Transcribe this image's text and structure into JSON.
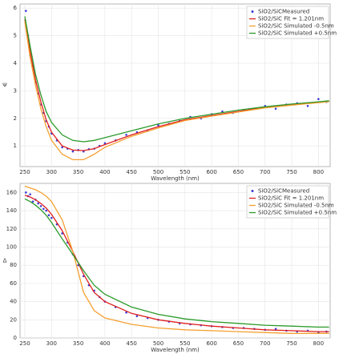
{
  "chart_data": [
    {
      "type": "line",
      "xlabel": "Wavelength (nm)",
      "ylabel": "Ψ",
      "xlim": [
        241,
        822
      ],
      "xticks": [
        250,
        300,
        350,
        400,
        450,
        500,
        550,
        600,
        650,
        700,
        750,
        800
      ],
      "ylim": [
        0.25,
        6.15
      ],
      "yticks": [
        1,
        2,
        3,
        4,
        5,
        6
      ],
      "grid": true,
      "legend": "upper-right",
      "series": [
        {
          "name": "SiO2/SiCMeasured",
          "color": "#3b3bd6",
          "style": "scatter",
          "x": [
            252,
            256,
            260,
            265,
            270,
            275,
            280,
            285,
            290,
            295,
            300,
            310,
            320,
            330,
            340,
            350,
            360,
            370,
            380,
            390,
            400,
            420,
            440,
            460,
            480,
            500,
            520,
            540,
            560,
            580,
            600,
            620,
            640,
            660,
            680,
            700,
            720,
            740,
            760,
            780,
            800,
            815
          ],
          "values": [
            5.9,
            5.0,
            4.3,
            3.9,
            3.3,
            2.9,
            2.5,
            2.2,
            1.9,
            1.7,
            1.45,
            1.2,
            0.95,
            0.9,
            0.8,
            0.85,
            0.8,
            0.88,
            0.9,
            1.0,
            1.1,
            1.2,
            1.4,
            1.5,
            1.55,
            1.75,
            1.8,
            1.9,
            2.05,
            2.0,
            2.15,
            2.25,
            2.2,
            2.3,
            2.35,
            2.45,
            2.35,
            2.5,
            2.55,
            2.45,
            2.7,
            2.6
          ]
        },
        {
          "name": "SiO2/SiC Fit = 1.201nm",
          "color": "#e02020",
          "style": "line",
          "x": [
            250,
            260,
            270,
            280,
            290,
            300,
            320,
            340,
            360,
            380,
            400,
            450,
            500,
            550,
            600,
            650,
            700,
            750,
            800,
            820
          ],
          "values": [
            5.6,
            4.4,
            3.4,
            2.6,
            1.95,
            1.5,
            1.0,
            0.85,
            0.83,
            0.9,
            1.05,
            1.4,
            1.7,
            1.95,
            2.1,
            2.25,
            2.4,
            2.5,
            2.58,
            2.62
          ]
        },
        {
          "name": "SiO2/SiC Simulated -0.5nm",
          "color": "#f5a030",
          "style": "line",
          "x": [
            250,
            260,
            270,
            280,
            290,
            300,
            320,
            340,
            360,
            380,
            400,
            450,
            500,
            550,
            600,
            650,
            700,
            750,
            800,
            820
          ],
          "values": [
            5.5,
            4.2,
            3.2,
            2.35,
            1.7,
            1.2,
            0.7,
            0.5,
            0.5,
            0.7,
            0.95,
            1.35,
            1.65,
            1.92,
            2.08,
            2.23,
            2.38,
            2.48,
            2.57,
            2.61
          ]
        },
        {
          "name": "SiO2/SiC Simulated +0.5nm",
          "color": "#2a9a2a",
          "style": "line",
          "x": [
            250,
            260,
            270,
            280,
            290,
            300,
            320,
            340,
            360,
            380,
            400,
            450,
            500,
            550,
            600,
            650,
            700,
            750,
            800,
            820
          ],
          "values": [
            5.7,
            4.6,
            3.6,
            2.85,
            2.25,
            1.85,
            1.4,
            1.2,
            1.15,
            1.2,
            1.3,
            1.55,
            1.8,
            2.0,
            2.15,
            2.3,
            2.42,
            2.52,
            2.6,
            2.64
          ]
        }
      ]
    },
    {
      "type": "line",
      "xlabel": "Wavelength (nm)",
      "ylabel": "Δ",
      "xlim": [
        241,
        822
      ],
      "xticks": [
        250,
        300,
        350,
        400,
        450,
        500,
        550,
        600,
        650,
        700,
        750,
        800
      ],
      "ylim": [
        0,
        170
      ],
      "yticks": [
        0,
        20,
        40,
        60,
        80,
        100,
        120,
        140,
        160
      ],
      "grid": true,
      "legend": "upper-right",
      "series": [
        {
          "name": "SiO2/SiCMeasured",
          "color": "#3b3bd6",
          "style": "scatter",
          "x": [
            252,
            256,
            260,
            265,
            270,
            275,
            280,
            285,
            290,
            295,
            300,
            310,
            320,
            330,
            340,
            350,
            360,
            370,
            380,
            390,
            400,
            420,
            440,
            460,
            480,
            500,
            520,
            540,
            560,
            580,
            600,
            620,
            640,
            660,
            680,
            700,
            720,
            740,
            760,
            780,
            800,
            815
          ],
          "values": [
            160,
            156,
            158,
            150,
            152,
            148,
            145,
            142,
            140,
            135,
            132,
            125,
            115,
            105,
            92,
            80,
            68,
            58,
            52,
            45,
            40,
            34,
            28,
            24,
            22,
            20,
            18,
            16,
            15,
            14,
            13,
            12,
            11,
            11,
            10,
            9,
            10,
            8,
            7,
            8,
            6,
            7
          ]
        },
        {
          "name": "SiO2/SiC Fit = 1.201nm",
          "color": "#e02020",
          "style": "line",
          "x": [
            250,
            260,
            270,
            280,
            290,
            300,
            320,
            340,
            360,
            380,
            400,
            450,
            500,
            550,
            600,
            650,
            700,
            750,
            800,
            820
          ],
          "values": [
            157,
            155,
            152,
            148,
            143,
            136,
            118,
            95,
            70,
            50,
            40,
            27,
            20,
            16,
            13,
            11,
            9,
            8,
            7,
            7
          ]
        },
        {
          "name": "SiO2/SiC Simulated -0.5nm",
          "color": "#f5a030",
          "style": "line",
          "x": [
            250,
            260,
            270,
            280,
            290,
            300,
            320,
            340,
            360,
            380,
            400,
            450,
            500,
            550,
            600,
            650,
            700,
            750,
            800,
            820
          ],
          "values": [
            167,
            165,
            163,
            160,
            156,
            150,
            130,
            95,
            50,
            30,
            22,
            15,
            11,
            9,
            8,
            7,
            6,
            5,
            5,
            5
          ]
        },
        {
          "name": "SiO2/SiC Simulated +0.5nm",
          "color": "#2a9a2a",
          "style": "line",
          "x": [
            250,
            260,
            270,
            280,
            290,
            300,
            320,
            340,
            360,
            380,
            400,
            450,
            500,
            550,
            600,
            650,
            700,
            750,
            800,
            820
          ],
          "values": [
            153,
            150,
            146,
            141,
            135,
            127,
            109,
            92,
            74,
            58,
            48,
            34,
            26,
            21,
            18,
            16,
            14,
            13,
            12,
            12
          ]
        }
      ]
    }
  ]
}
